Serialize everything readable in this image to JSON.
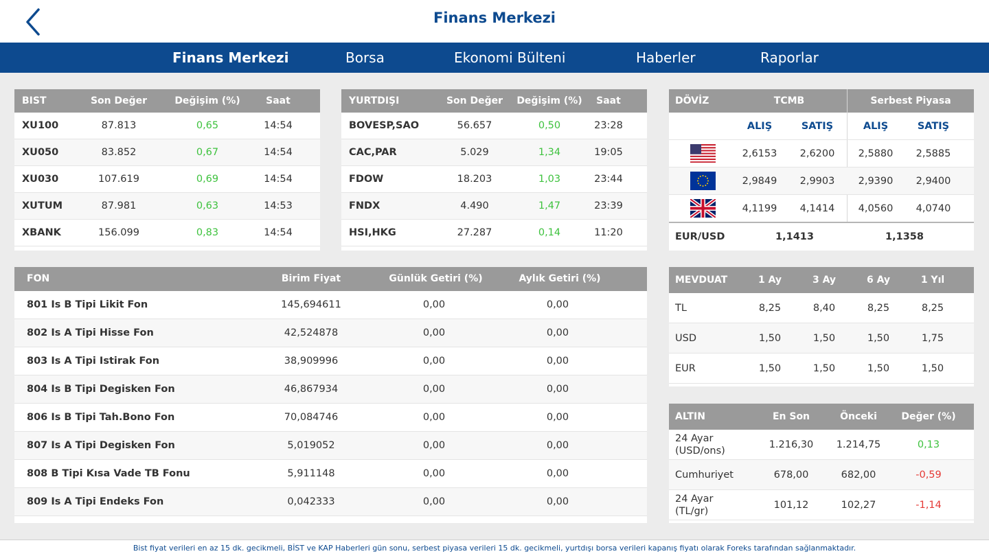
{
  "header": {
    "title": "Finans Merkezi"
  },
  "nav": {
    "tabs": [
      {
        "label": "Finans Merkezi",
        "active": true
      },
      {
        "label": "Borsa"
      },
      {
        "label": "Ekonomi Bülteni"
      },
      {
        "label": "Haberler"
      },
      {
        "label": "Raporlar"
      }
    ]
  },
  "bist": {
    "headers": [
      "BIST",
      "Son Değer",
      "Değişim (%)",
      "Saat"
    ],
    "rows": [
      {
        "name": "XU100",
        "value": "87.813",
        "change": "0,65",
        "time": "14:54"
      },
      {
        "name": "XU050",
        "value": "83.852",
        "change": "0,67",
        "time": "14:54"
      },
      {
        "name": "XU030",
        "value": "107.619",
        "change": "0,69",
        "time": "14:54"
      },
      {
        "name": "XUTUM",
        "value": "87.981",
        "change": "0,63",
        "time": "14:53"
      },
      {
        "name": "XBANK",
        "value": "156.099",
        "change": "0,83",
        "time": "14:54"
      }
    ]
  },
  "yurtdisi": {
    "headers": [
      "YURTDIŞI",
      "Son Değer",
      "Değişim (%)",
      "Saat"
    ],
    "rows": [
      {
        "name": "BOVESP,SAO",
        "value": "56.657",
        "change": "0,50",
        "time": "23:28"
      },
      {
        "name": "CAC,PAR",
        "value": "5.029",
        "change": "1,34",
        "time": "19:05"
      },
      {
        "name": "FDOW",
        "value": "18.203",
        "change": "1,03",
        "time": "23:44"
      },
      {
        "name": "FNDX",
        "value": "4.490",
        "change": "1,47",
        "time": "23:39"
      },
      {
        "name": "HSI,HKG",
        "value": "27.287",
        "change": "0,14",
        "time": "11:20"
      }
    ]
  },
  "doviz": {
    "title": "DÖVİZ",
    "group1": "TCMB",
    "group2": "Serbest Piyasa",
    "sub": [
      "ALIŞ",
      "SATIŞ",
      "ALIŞ",
      "SATIŞ"
    ],
    "rows": [
      {
        "flag": "us-flag-icon",
        "values": [
          "2,6153",
          "2,6200",
          "2,5880",
          "2,5885"
        ]
      },
      {
        "flag": "eu-flag-icon",
        "values": [
          "2,9849",
          "2,9903",
          "2,9390",
          "2,9400"
        ]
      },
      {
        "flag": "uk-flag-icon",
        "values": [
          "4,1199",
          "4,1414",
          "4,0560",
          "4,0740"
        ]
      }
    ],
    "parity": {
      "label": "EUR/USD",
      "tcmb": "1,1413",
      "serbest": "1,1358"
    }
  },
  "fon": {
    "headers": [
      "FON",
      "Birim Fiyat",
      "Günlük Getiri (%)",
      "Aylık Getiri (%)"
    ],
    "rows": [
      {
        "name": "801 Is B Tipi Likit Fon",
        "price": "145,694611",
        "daily": "0,00",
        "monthly": "0,00"
      },
      {
        "name": "802 Is A Tipi Hisse Fon",
        "price": "42,524878",
        "daily": "0,00",
        "monthly": "0,00"
      },
      {
        "name": "803 Is A Tipi Istirak Fon",
        "price": "38,909996",
        "daily": "0,00",
        "monthly": "0,00"
      },
      {
        "name": "804 Is B Tipi Degisken Fon",
        "price": "46,867934",
        "daily": "0,00",
        "monthly": "0,00"
      },
      {
        "name": "806 Is B Tipi Tah.Bono Fon",
        "price": "70,084746",
        "daily": "0,00",
        "monthly": "0,00"
      },
      {
        "name": "807 Is A Tipi Degisken Fon",
        "price": "5,019052",
        "daily": "0,00",
        "monthly": "0,00"
      },
      {
        "name": "808 B Tipi Kısa Vade TB Fonu",
        "price": "5,911148",
        "daily": "0,00",
        "monthly": "0,00"
      },
      {
        "name": "809 Is A Tipi Endeks Fon",
        "price": "0,042333",
        "daily": "0,00",
        "monthly": "0,00"
      }
    ]
  },
  "mevduat": {
    "headers": [
      "MEVDUAT",
      "1 Ay",
      "3 Ay",
      "6 Ay",
      "1 Yıl"
    ],
    "rows": [
      {
        "name": "TL",
        "values": [
          "8,25",
          "8,40",
          "8,25",
          "8,25"
        ]
      },
      {
        "name": "USD",
        "values": [
          "1,50",
          "1,50",
          "1,50",
          "1,75"
        ]
      },
      {
        "name": "EUR",
        "values": [
          "1,50",
          "1,50",
          "1,50",
          "1,50"
        ]
      }
    ]
  },
  "altin": {
    "headers": [
      "ALTIN",
      "En Son",
      "Önceki",
      "Değer (%)"
    ],
    "rows": [
      {
        "name1": "24 Ayar",
        "name2": "(USD/ons)",
        "last": "1.216,30",
        "prev": "1.214,75",
        "change": "0,13",
        "trend": "up"
      },
      {
        "name1": "Cumhuriyet",
        "name2": "",
        "last": "678,00",
        "prev": "682,00",
        "change": "-0,59",
        "trend": "down"
      },
      {
        "name1": "24 Ayar",
        "name2": "(TL/gr)",
        "last": "101,12",
        "prev": "102,27",
        "change": "-1,14",
        "trend": "down"
      }
    ]
  },
  "footer": {
    "text": "Bist fiyat verileri en az 15 dk. gecikmeli, BİST ve KAP Haberleri gün sonu, serbest piyasa verileri 15 dk. gecikmeli, yurtdışı borsa verileri kapanış fiyatı olarak Foreks tarafından sağlanmaktadır."
  },
  "colors": {
    "brand": "#0d4a8f",
    "header_gray": "#9a9a9a",
    "positive": "#3ec23e",
    "negative": "#e53935"
  }
}
